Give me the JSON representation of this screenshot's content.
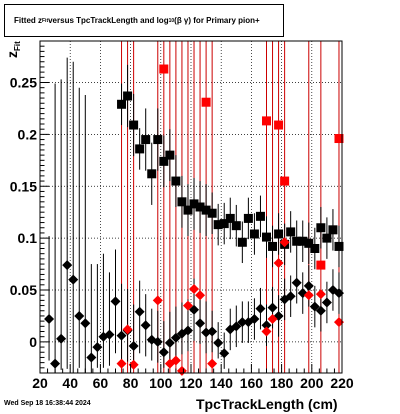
{
  "title": {
    "prefix": "Fitted  z",
    "sub": "Fit",
    "middle": "  versus TpcTrackLength and log",
    "sub2": "10",
    "suffix": "(β  γ) for Primary pion+"
  },
  "footer": "Wed Sep 18 16:38:44 2024",
  "colors": {
    "black_series": "#000000",
    "red_series": "#ff0000",
    "red_lines": "#cc0000",
    "grid": "#000000"
  },
  "chart_data": {
    "type": "scatter",
    "xlabel": "TpcTrackLength (cm)",
    "ylabel_main": "z",
    "ylabel_sub": "Fit",
    "xlim": [
      20,
      220
    ],
    "ylim": [
      -0.03,
      0.29
    ],
    "x_ticks": [
      20,
      40,
      60,
      80,
      100,
      120,
      140,
      160,
      180,
      200,
      220
    ],
    "y_ticks": [
      0,
      0.05,
      0.1,
      0.15,
      0.2,
      0.25
    ],
    "y_tick_labels": [
      "0",
      "0.05",
      "0.1",
      "0.15",
      "0.2",
      "0.25"
    ],
    "grid": true,
    "series": [
      {
        "marker": "diamond",
        "color": "#000000",
        "points": [
          {
            "x": 26,
            "y": 0.022,
            "elo": 0.04,
            "ehi": 0.08
          },
          {
            "x": 30,
            "y": -0.021,
            "elo": 0.01,
            "ehi": 0.27
          },
          {
            "x": 34,
            "y": 0.003,
            "elo": 0.03,
            "ehi": 0.25
          },
          {
            "x": 38,
            "y": 0.074,
            "elo": 0.1,
            "ehi": 0.2
          },
          {
            "x": 42,
            "y": 0.06,
            "elo": 0.09,
            "ehi": 0.21
          },
          {
            "x": 46,
            "y": 0.025,
            "elo": 0.05,
            "ehi": 0.22
          },
          {
            "x": 50,
            "y": 0.018,
            "elo": 0.05,
            "ehi": 0.22
          },
          {
            "x": 54,
            "y": -0.015,
            "elo": 0.015,
            "ehi": 0.09
          },
          {
            "x": 58,
            "y": -0.005,
            "elo": 0.02,
            "ehi": 0.08
          },
          {
            "x": 62,
            "y": 0.005,
            "elo": 0.03,
            "ehi": 0.08
          },
          {
            "x": 66,
            "y": 0.007,
            "elo": 0.03,
            "ehi": 0.06
          },
          {
            "x": 70,
            "y": 0.039,
            "elo": 0.05,
            "ehi": 0.05
          },
          {
            "x": 74,
            "y": 0.006,
            "elo": 0.03,
            "ehi": 0.05
          },
          {
            "x": 78,
            "y": 0.011,
            "elo": 0.03,
            "ehi": 0.04
          },
          {
            "x": 82,
            "y": -0.004,
            "elo": 0.02,
            "ehi": 0.04
          },
          {
            "x": 86,
            "y": 0.029,
            "elo": 0.04,
            "ehi": 0.03
          },
          {
            "x": 90,
            "y": 0.016,
            "elo": 0.03,
            "ehi": 0.03
          },
          {
            "x": 94,
            "y": 0.002,
            "elo": 0.02,
            "ehi": 0.03
          },
          {
            "x": 98,
            "y": 0.0,
            "elo": 0.02,
            "ehi": 0.03
          },
          {
            "x": 102,
            "y": -0.01,
            "elo": 0.015,
            "ehi": 0.03
          },
          {
            "x": 106,
            "y": -0.001,
            "elo": 0.02,
            "ehi": 0.03
          },
          {
            "x": 110,
            "y": 0.004,
            "elo": 0.02,
            "ehi": 0.03
          },
          {
            "x": 114,
            "y": 0.008,
            "elo": 0.02,
            "ehi": 0.03
          },
          {
            "x": 118,
            "y": 0.011,
            "elo": 0.02,
            "ehi": 0.03
          },
          {
            "x": 122,
            "y": 0.031,
            "elo": 0.03,
            "ehi": 0.03
          },
          {
            "x": 126,
            "y": 0.018,
            "elo": 0.02,
            "ehi": 0.03
          },
          {
            "x": 130,
            "y": 0.009,
            "elo": 0.02,
            "ehi": 0.03
          },
          {
            "x": 134,
            "y": 0.01,
            "elo": 0.02,
            "ehi": 0.02
          },
          {
            "x": 138,
            "y": -0.001,
            "elo": 0.015,
            "ehi": 0.02
          },
          {
            "x": 142,
            "y": -0.011,
            "elo": 0.015,
            "ehi": 0.02
          },
          {
            "x": 146,
            "y": 0.012,
            "elo": 0.02,
            "ehi": 0.02
          },
          {
            "x": 150,
            "y": 0.015,
            "elo": 0.02,
            "ehi": 0.02
          },
          {
            "x": 154,
            "y": 0.019,
            "elo": 0.02,
            "ehi": 0.02
          },
          {
            "x": 158,
            "y": 0.019,
            "elo": 0.02,
            "ehi": 0.02
          },
          {
            "x": 162,
            "y": 0.022,
            "elo": 0.02,
            "ehi": 0.02
          },
          {
            "x": 166,
            "y": 0.032,
            "elo": 0.02,
            "ehi": 0.02
          },
          {
            "x": 170,
            "y": 0.016,
            "elo": 0.02,
            "ehi": 0.02
          },
          {
            "x": 174,
            "y": 0.033,
            "elo": 0.02,
            "ehi": 0.02
          },
          {
            "x": 178,
            "y": 0.025,
            "elo": 0.02,
            "ehi": 0.02
          },
          {
            "x": 182,
            "y": 0.041,
            "elo": 0.02,
            "ehi": 0.02
          },
          {
            "x": 186,
            "y": 0.044,
            "elo": 0.02,
            "ehi": 0.02
          },
          {
            "x": 190,
            "y": 0.057,
            "elo": 0.02,
            "ehi": 0.02
          },
          {
            "x": 194,
            "y": 0.047,
            "elo": 0.02,
            "ehi": 0.02
          },
          {
            "x": 198,
            "y": 0.054,
            "elo": 0.02,
            "ehi": 0.02
          },
          {
            "x": 202,
            "y": 0.034,
            "elo": 0.02,
            "ehi": 0.02
          },
          {
            "x": 206,
            "y": 0.03,
            "elo": 0.02,
            "ehi": 0.02
          },
          {
            "x": 210,
            "y": 0.038,
            "elo": 0.02,
            "ehi": 0.02
          },
          {
            "x": 214,
            "y": 0.05,
            "elo": 0.02,
            "ehi": 0.02
          },
          {
            "x": 218,
            "y": 0.047,
            "elo": 0.02,
            "ehi": 0.02
          }
        ]
      },
      {
        "marker": "square",
        "color": "#000000",
        "points": [
          {
            "x": 74,
            "y": 0.229,
            "elo": 0.02,
            "ehi": 0.02
          },
          {
            "x": 78,
            "y": 0.237,
            "elo": 0.03,
            "ehi": 0.03
          },
          {
            "x": 82,
            "y": 0.209,
            "elo": 0.03,
            "ehi": 0.03
          },
          {
            "x": 86,
            "y": 0.186,
            "elo": 0.02,
            "ehi": 0.02
          },
          {
            "x": 90,
            "y": 0.195,
            "elo": 0.03,
            "ehi": 0.03
          },
          {
            "x": 94,
            "y": 0.162,
            "elo": 0.03,
            "ehi": 0.03
          },
          {
            "x": 98,
            "y": 0.195,
            "elo": 0.03,
            "ehi": 0.03
          },
          {
            "x": 102,
            "y": 0.174,
            "elo": 0.025,
            "ehi": 0.025
          },
          {
            "x": 106,
            "y": 0.18,
            "elo": 0.025,
            "ehi": 0.025
          },
          {
            "x": 110,
            "y": 0.155,
            "elo": 0.025,
            "ehi": 0.025
          },
          {
            "x": 114,
            "y": 0.135,
            "elo": 0.025,
            "ehi": 0.025
          },
          {
            "x": 118,
            "y": 0.127,
            "elo": 0.025,
            "ehi": 0.025
          },
          {
            "x": 122,
            "y": 0.133,
            "elo": 0.025,
            "ehi": 0.025
          },
          {
            "x": 126,
            "y": 0.13,
            "elo": 0.025,
            "ehi": 0.025
          },
          {
            "x": 130,
            "y": 0.127,
            "elo": 0.025,
            "ehi": 0.025
          },
          {
            "x": 134,
            "y": 0.124,
            "elo": 0.02,
            "ehi": 0.02
          },
          {
            "x": 138,
            "y": 0.113,
            "elo": 0.02,
            "ehi": 0.02
          },
          {
            "x": 142,
            "y": 0.114,
            "elo": 0.02,
            "ehi": 0.02
          },
          {
            "x": 146,
            "y": 0.119,
            "elo": 0.02,
            "ehi": 0.02
          },
          {
            "x": 150,
            "y": 0.112,
            "elo": 0.02,
            "ehi": 0.02
          },
          {
            "x": 154,
            "y": 0.096,
            "elo": 0.02,
            "ehi": 0.02
          },
          {
            "x": 158,
            "y": 0.119,
            "elo": 0.02,
            "ehi": 0.02
          },
          {
            "x": 162,
            "y": 0.104,
            "elo": 0.02,
            "ehi": 0.02
          },
          {
            "x": 166,
            "y": 0.121,
            "elo": 0.02,
            "ehi": 0.02
          },
          {
            "x": 170,
            "y": 0.101,
            "elo": 0.02,
            "ehi": 0.02
          },
          {
            "x": 174,
            "y": 0.092,
            "elo": 0.02,
            "ehi": 0.02
          },
          {
            "x": 178,
            "y": 0.104,
            "elo": 0.02,
            "ehi": 0.02
          },
          {
            "x": 182,
            "y": 0.094,
            "elo": 0.02,
            "ehi": 0.02
          },
          {
            "x": 186,
            "y": 0.106,
            "elo": 0.02,
            "ehi": 0.02
          },
          {
            "x": 190,
            "y": 0.097,
            "elo": 0.02,
            "ehi": 0.02
          },
          {
            "x": 194,
            "y": 0.097,
            "elo": 0.02,
            "ehi": 0.02
          },
          {
            "x": 198,
            "y": 0.095,
            "elo": 0.02,
            "ehi": 0.02
          },
          {
            "x": 202,
            "y": 0.09,
            "elo": 0.02,
            "ehi": 0.02
          },
          {
            "x": 206,
            "y": 0.11,
            "elo": 0.02,
            "ehi": 0.02
          },
          {
            "x": 210,
            "y": 0.1,
            "elo": 0.02,
            "ehi": 0.02
          },
          {
            "x": 214,
            "y": 0.108,
            "elo": 0.02,
            "ehi": 0.02
          },
          {
            "x": 218,
            "y": 0.092,
            "elo": 0.02,
            "ehi": 0.02
          }
        ]
      },
      {
        "marker": "diamond",
        "color": "#ff0000",
        "points": [
          {
            "x": 74,
            "y": -0.021
          },
          {
            "x": 78,
            "y": 0.012
          },
          {
            "x": 82,
            "y": -0.022
          },
          {
            "x": 98,
            "y": 0.04
          },
          {
            "x": 106,
            "y": -0.021
          },
          {
            "x": 110,
            "y": -0.018
          },
          {
            "x": 114,
            "y": -0.028
          },
          {
            "x": 118,
            "y": 0.035
          },
          {
            "x": 122,
            "y": 0.051
          },
          {
            "x": 126,
            "y": 0.045
          },
          {
            "x": 134,
            "y": -0.021
          },
          {
            "x": 170,
            "y": 0.01
          },
          {
            "x": 174,
            "y": 0.022
          },
          {
            "x": 178,
            "y": 0.076
          },
          {
            "x": 182,
            "y": 0.096
          },
          {
            "x": 198,
            "y": 0.045
          },
          {
            "x": 206,
            "y": 0.046
          },
          {
            "x": 218,
            "y": 0.019
          }
        ]
      },
      {
        "marker": "square",
        "color": "#ff0000",
        "points": [
          {
            "x": 102,
            "y": 0.263
          },
          {
            "x": 130,
            "y": 0.231
          },
          {
            "x": 170,
            "y": 0.213
          },
          {
            "x": 178,
            "y": 0.209
          },
          {
            "x": 182,
            "y": 0.155
          },
          {
            "x": 206,
            "y": 0.074
          },
          {
            "x": 218,
            "y": 0.196
          }
        ]
      }
    ],
    "red_vertical_lines_x": [
      74,
      78,
      82,
      98,
      102,
      106,
      110,
      114,
      118,
      122,
      126,
      130,
      134,
      170,
      174,
      178,
      182,
      198,
      206,
      218
    ]
  }
}
